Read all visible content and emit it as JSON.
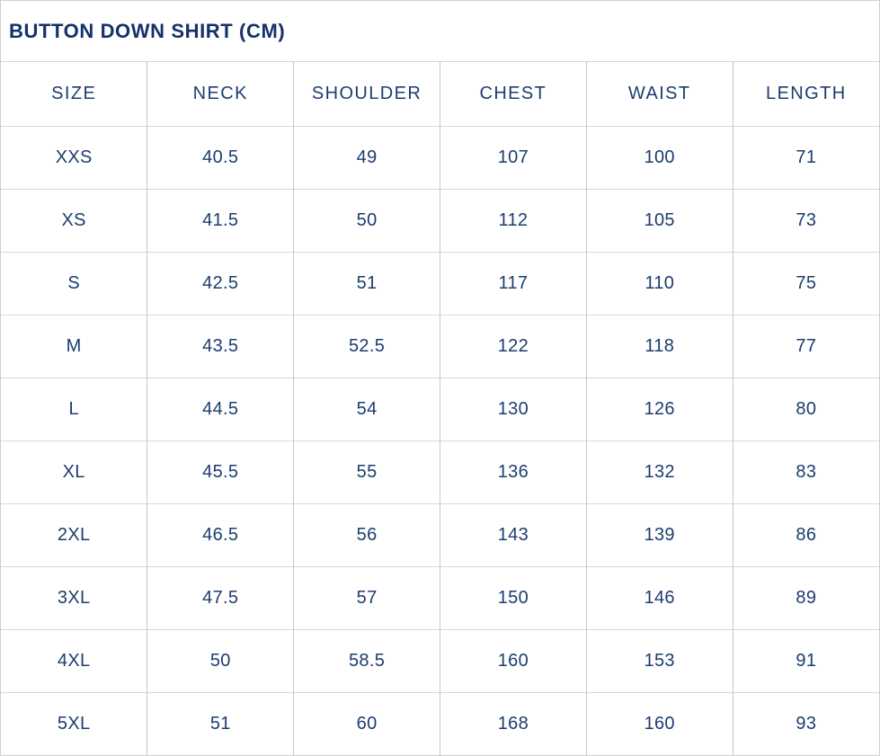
{
  "title": "BUTTON DOWN SHIRT (CM)",
  "colors": {
    "title_text": "#14316a",
    "cell_text": "#1d3d6e",
    "grid_vertical": "#c6c6c6",
    "grid_horizontal": "#d8d8d8",
    "outer_border": "#cfcfcf",
    "background": "#ffffff"
  },
  "chart_data": {
    "type": "table",
    "title": "BUTTON DOWN SHIRT (CM)",
    "unit": "cm",
    "columns": [
      "SIZE",
      "NECK",
      "SHOULDER",
      "CHEST",
      "WAIST",
      "LENGTH"
    ],
    "rows": [
      [
        "XXS",
        "40.5",
        "49",
        "107",
        "100",
        "71"
      ],
      [
        "XS",
        "41.5",
        "50",
        "112",
        "105",
        "73"
      ],
      [
        "S",
        "42.5",
        "51",
        "117",
        "110",
        "75"
      ],
      [
        "M",
        "43.5",
        "52.5",
        "122",
        "118",
        "77"
      ],
      [
        "L",
        "44.5",
        "54",
        "130",
        "126",
        "80"
      ],
      [
        "XL",
        "45.5",
        "55",
        "136",
        "132",
        "83"
      ],
      [
        "2XL",
        "46.5",
        "56",
        "143",
        "139",
        "86"
      ],
      [
        "3XL",
        "47.5",
        "57",
        "150",
        "146",
        "89"
      ],
      [
        "4XL",
        "50",
        "58.5",
        "160",
        "153",
        "91"
      ],
      [
        "5XL",
        "51",
        "60",
        "168",
        "160",
        "93"
      ]
    ]
  }
}
